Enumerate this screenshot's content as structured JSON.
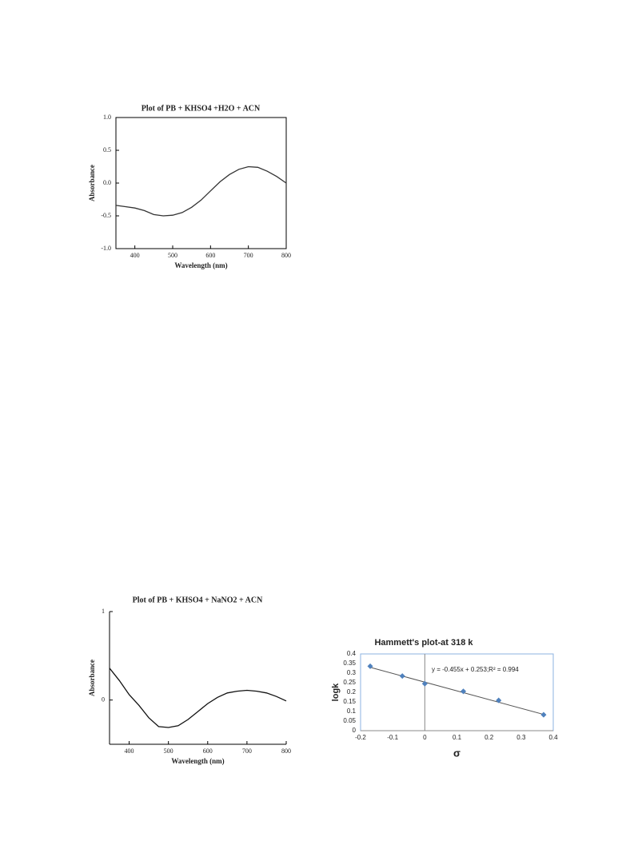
{
  "chart_data": [
    {
      "type": "line",
      "title": "Plot of PB + KHSO4 +H2O + ACN",
      "x_label": "Wavelength (nm)",
      "y_label": "Absorbance",
      "x": [
        350,
        375,
        400,
        425,
        450,
        475,
        500,
        525,
        550,
        575,
        600,
        625,
        650,
        675,
        700,
        725,
        750,
        775,
        800
      ],
      "values": [
        -0.34,
        -0.36,
        -0.38,
        -0.42,
        -0.48,
        -0.5,
        -0.49,
        -0.45,
        -0.37,
        -0.26,
        -0.12,
        0.02,
        0.13,
        0.21,
        0.25,
        0.24,
        0.18,
        0.1,
        0.0
      ],
      "color": "#333333",
      "xlim": [
        350,
        800
      ],
      "xticks": [
        400,
        500,
        600,
        700,
        800
      ],
      "ylim": [
        -1,
        1
      ],
      "yticks": [
        {
          "value": -1,
          "label": "-1.0"
        },
        -0.5,
        {
          "value": 0,
          "label": "0.0"
        },
        0.5,
        {
          "value": 1,
          "label": "1.0"
        }
      ]
    },
    {
      "type": "line",
      "title": "Plot of PB + KHSO4 + NaNO2 + ACN",
      "x_label": "Wavelength (nm)",
      "y_label": "Absorbance",
      "x": [
        350,
        375,
        400,
        425,
        450,
        475,
        500,
        525,
        550,
        575,
        600,
        625,
        650,
        675,
        700,
        725,
        750,
        775,
        800
      ],
      "values": [
        0.36,
        0.22,
        0.06,
        -0.06,
        -0.2,
        -0.3,
        -0.31,
        -0.29,
        -0.22,
        -0.13,
        -0.04,
        0.03,
        0.08,
        0.1,
        0.11,
        0.1,
        0.08,
        0.04,
        -0.01
      ],
      "color": "#111111",
      "xlim": [
        350,
        800
      ],
      "xticks": [
        400,
        500,
        600,
        700,
        800
      ],
      "ylim": [
        -0.5,
        1
      ],
      "yticks": [
        0,
        1
      ]
    },
    {
      "type": "scatter",
      "title": "Hammett's plot-at 318 k",
      "x_label": "σ",
      "y_label": "logk",
      "annotation": "y = -0.455x + 0.253;R² = 0.994",
      "x": [
        -0.17,
        -0.07,
        0,
        0.12,
        0.23,
        0.37
      ],
      "values": [
        0.336,
        0.285,
        0.245,
        0.205,
        0.158,
        0.083
      ],
      "color": "#4f81bd",
      "trendline": {
        "slope": -0.455,
        "intercept": 0.253
      },
      "xlim": [
        -0.2,
        0.4
      ],
      "xticks": [
        -0.2,
        -0.1,
        0,
        0.1,
        0.2,
        0.3,
        0.4
      ],
      "ylim": [
        0,
        0.4
      ],
      "yticks": [
        0,
        0.05,
        0.1,
        0.15,
        0.2,
        0.25,
        0.3,
        0.35,
        0.4
      ]
    }
  ]
}
